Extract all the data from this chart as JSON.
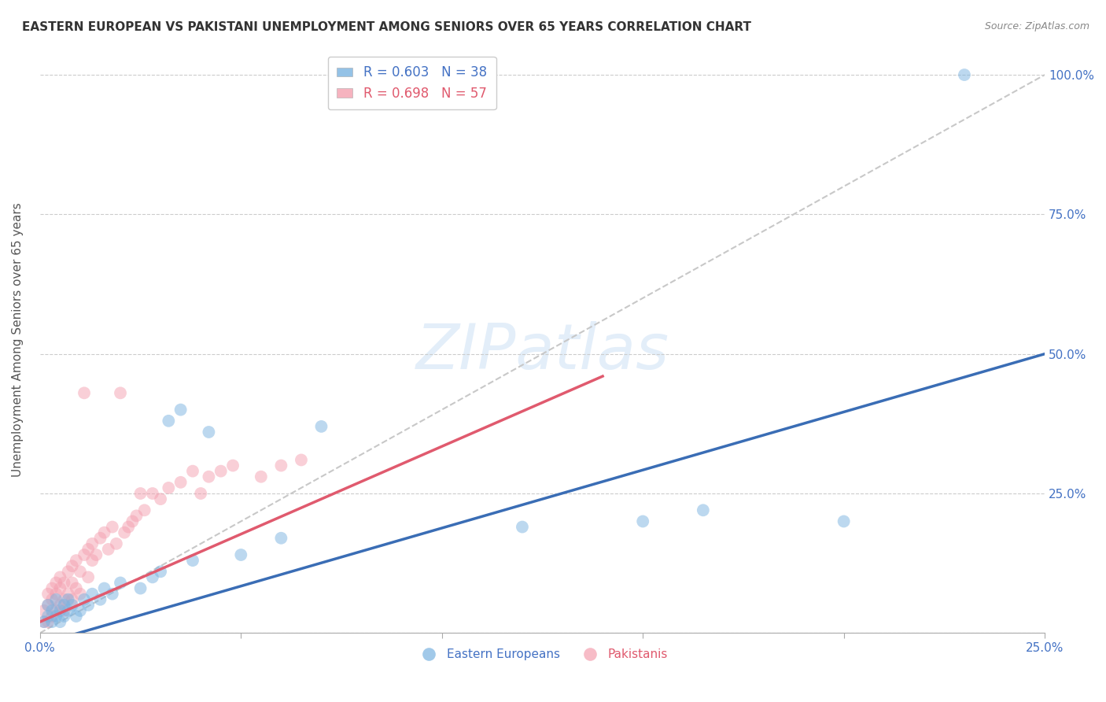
{
  "title": "EASTERN EUROPEAN VS PAKISTANI UNEMPLOYMENT AMONG SENIORS OVER 65 YEARS CORRELATION CHART",
  "source": "Source: ZipAtlas.com",
  "ylabel": "Unemployment Among Seniors over 65 years",
  "xlim": [
    0,
    0.25
  ],
  "ylim": [
    0,
    1.05
  ],
  "x_ticks": [
    0.0,
    0.05,
    0.1,
    0.15,
    0.2,
    0.25
  ],
  "x_tick_labels": [
    "0.0%",
    "",
    "",
    "",
    "",
    "25.0%"
  ],
  "y_ticks": [
    0.0,
    0.25,
    0.5,
    0.75,
    1.0
  ],
  "y_tick_labels": [
    "",
    "25.0%",
    "50.0%",
    "75.0%",
    "100.0%"
  ],
  "legend_entries": [
    {
      "label": "R = 0.603   N = 38",
      "color": "#6baed6"
    },
    {
      "label": "R = 0.698   N = 57",
      "color": "#fb6a8a"
    }
  ],
  "blue_color": "#7ab3e0",
  "pink_color": "#f4a0b0",
  "blue_line_color": "#3a6db5",
  "pink_line_color": "#e05a6e",
  "diagonal_line_color": "#c8c8c8",
  "watermark": "ZIPatlas",
  "blue_line_x0": 0.0,
  "blue_line_y0": -0.02,
  "blue_line_x1": 0.25,
  "blue_line_y1": 0.5,
  "pink_line_x0": 0.0,
  "pink_line_y0": 0.02,
  "pink_line_x1": 0.14,
  "pink_line_y1": 0.46,
  "eastern_europeans_x": [
    0.001,
    0.002,
    0.002,
    0.003,
    0.003,
    0.004,
    0.004,
    0.005,
    0.005,
    0.006,
    0.006,
    0.007,
    0.007,
    0.008,
    0.009,
    0.01,
    0.011,
    0.012,
    0.013,
    0.015,
    0.016,
    0.018,
    0.02,
    0.025,
    0.028,
    0.03,
    0.032,
    0.035,
    0.038,
    0.042,
    0.05,
    0.06,
    0.07,
    0.12,
    0.15,
    0.165,
    0.2,
    0.23
  ],
  "eastern_europeans_y": [
    0.02,
    0.03,
    0.05,
    0.02,
    0.04,
    0.03,
    0.06,
    0.04,
    0.02,
    0.05,
    0.03,
    0.04,
    0.06,
    0.05,
    0.03,
    0.04,
    0.06,
    0.05,
    0.07,
    0.06,
    0.08,
    0.07,
    0.09,
    0.08,
    0.1,
    0.11,
    0.38,
    0.4,
    0.13,
    0.36,
    0.14,
    0.17,
    0.37,
    0.19,
    0.2,
    0.22,
    0.2,
    1.0
  ],
  "pakistanis_x": [
    0.001,
    0.001,
    0.002,
    0.002,
    0.002,
    0.003,
    0.003,
    0.003,
    0.004,
    0.004,
    0.004,
    0.005,
    0.005,
    0.005,
    0.006,
    0.006,
    0.006,
    0.007,
    0.007,
    0.008,
    0.008,
    0.008,
    0.009,
    0.009,
    0.01,
    0.01,
    0.011,
    0.011,
    0.012,
    0.012,
    0.013,
    0.013,
    0.014,
    0.015,
    0.016,
    0.017,
    0.018,
    0.019,
    0.02,
    0.021,
    0.022,
    0.023,
    0.024,
    0.025,
    0.026,
    0.028,
    0.03,
    0.032,
    0.035,
    0.038,
    0.04,
    0.042,
    0.045,
    0.048,
    0.055,
    0.06,
    0.065
  ],
  "pakistanis_y": [
    0.02,
    0.04,
    0.02,
    0.05,
    0.07,
    0.03,
    0.06,
    0.08,
    0.04,
    0.07,
    0.09,
    0.05,
    0.08,
    0.1,
    0.04,
    0.06,
    0.09,
    0.07,
    0.11,
    0.06,
    0.09,
    0.12,
    0.08,
    0.13,
    0.07,
    0.11,
    0.43,
    0.14,
    0.1,
    0.15,
    0.13,
    0.16,
    0.14,
    0.17,
    0.18,
    0.15,
    0.19,
    0.16,
    0.43,
    0.18,
    0.19,
    0.2,
    0.21,
    0.25,
    0.22,
    0.25,
    0.24,
    0.26,
    0.27,
    0.29,
    0.25,
    0.28,
    0.29,
    0.3,
    0.28,
    0.3,
    0.31
  ]
}
